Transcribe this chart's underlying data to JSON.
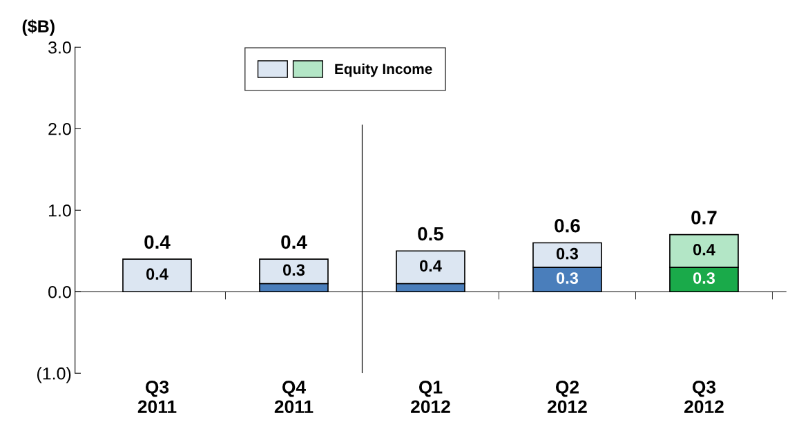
{
  "chart_data": {
    "type": "bar",
    "stacked": true,
    "ylabel": "($B)",
    "categories": [
      "Q3\n2011",
      "Q4\n2011",
      "Q1\n2012",
      "Q2\n2012",
      "Q3\n2012"
    ],
    "series": [
      {
        "colors": [
          "#4a7ebb",
          "#4a7ebb",
          "#4a7ebb",
          "#4a7ebb",
          "#1aaa4a"
        ],
        "values": [
          0,
          0.1,
          0.1,
          0.3,
          0.3
        ],
        "value_labels": [
          null,
          null,
          null,
          "0.3",
          "0.3"
        ]
      },
      {
        "name": "Equity Income",
        "colors": [
          "#dce6f2",
          "#dce6f2",
          "#dce6f2",
          "#dce6f2",
          "#b3e6c6"
        ],
        "values": [
          0.4,
          0.3,
          0.4,
          0.3,
          0.4
        ],
        "value_labels": [
          "0.4",
          "0.3",
          "0.4",
          "0.3",
          "0.4"
        ]
      }
    ],
    "totals": [
      "0.4",
      "0.4",
      "0.5",
      "0.6",
      "0.7"
    ],
    "ylim": [
      -1.0,
      3.0
    ],
    "yticks": [
      {
        "value": -1.0,
        "label": "(1.0)"
      },
      {
        "value": 0.0,
        "label": "0.0"
      },
      {
        "value": 1.0,
        "label": "1.0"
      },
      {
        "value": 2.0,
        "label": "2.0"
      },
      {
        "value": 3.0,
        "label": "3.0"
      }
    ],
    "legend": "top"
  }
}
